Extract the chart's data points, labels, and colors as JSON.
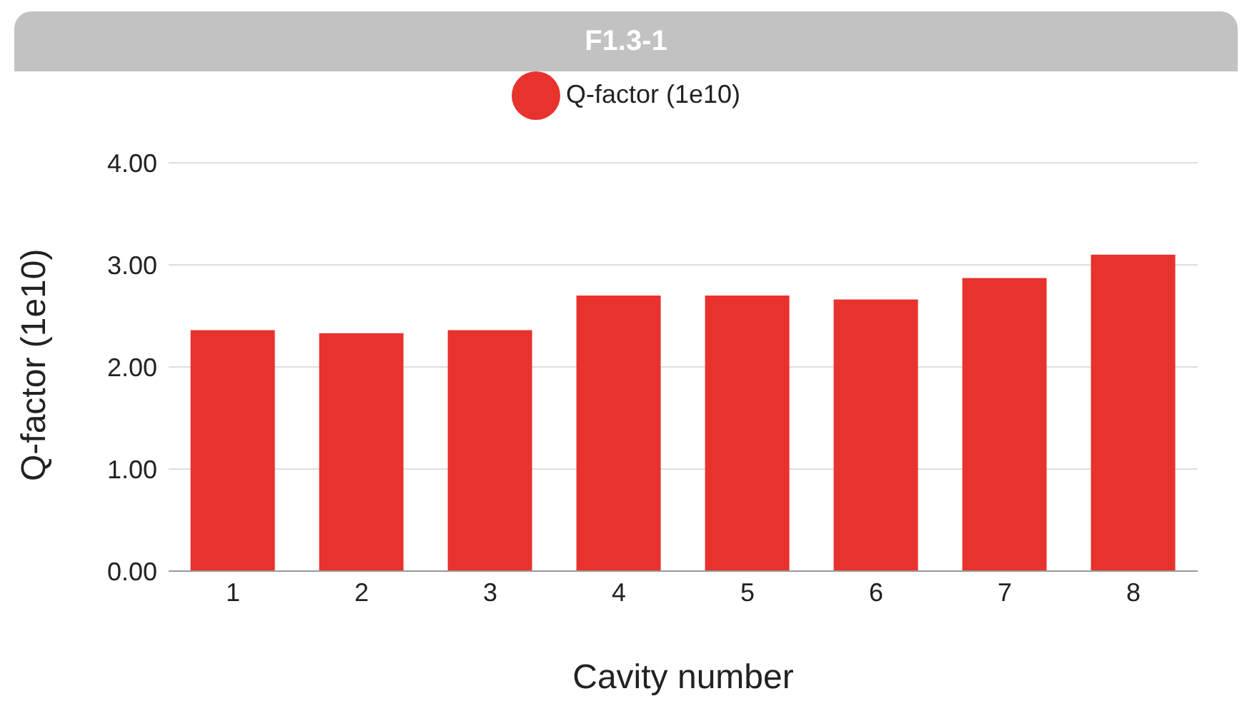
{
  "chart_data": {
    "type": "bar",
    "title": "F1.3-1",
    "categories": [
      "1",
      "2",
      "3",
      "4",
      "5",
      "6",
      "7",
      "8"
    ],
    "series": [
      {
        "name": "Q-factor (1e10)",
        "color": "#e8322e",
        "values": [
          2.36,
          2.33,
          2.36,
          2.7,
          2.7,
          2.66,
          2.87,
          3.1
        ]
      }
    ],
    "xlabel": "Cavity number",
    "ylabel": "Q-factor (1e10)",
    "ylim": [
      0,
      4
    ],
    "yticks": [
      {
        "value": 0,
        "label": "0.00"
      },
      {
        "value": 1,
        "label": "1.00"
      },
      {
        "value": 2,
        "label": "2.00"
      },
      {
        "value": 3,
        "label": "3.00"
      },
      {
        "value": 4,
        "label": "4.00"
      }
    ],
    "grid": "y",
    "legend": "top"
  }
}
